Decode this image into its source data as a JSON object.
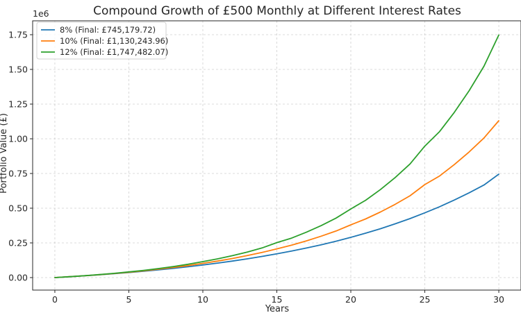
{
  "chart_data": {
    "type": "line",
    "title": "Compound Growth of £500 Monthly at Different Interest Rates",
    "xlabel": "Years",
    "ylabel": "Portfolio Value (£)",
    "y_offset_text": "1e6",
    "xlim": [
      -1.5,
      31.5
    ],
    "ylim": [
      -0.09,
      1.85
    ],
    "xticks": [
      0,
      5,
      10,
      15,
      20,
      25,
      30
    ],
    "xtick_labels": [
      "0",
      "5",
      "10",
      "15",
      "20",
      "25",
      "30"
    ],
    "yticks": [
      0,
      0.25,
      0.5,
      0.75,
      1.0,
      1.25,
      1.5,
      1.75
    ],
    "ytick_labels": [
      "0.00",
      "0.25",
      "0.50",
      "0.75",
      "1.00",
      "1.25",
      "1.50",
      "1.75"
    ],
    "grid": true,
    "legend_position": "top-left",
    "x": [
      0,
      1,
      2,
      3,
      4,
      5,
      6,
      7,
      8,
      9,
      10,
      11,
      12,
      13,
      14,
      15,
      16,
      17,
      18,
      19,
      20,
      21,
      22,
      23,
      24,
      25,
      26,
      27,
      28,
      29,
      30
    ],
    "series": [
      {
        "name": "8% (Final: £745,179.72)",
        "color": "#1f77b4",
        "values": [
          0,
          0.0062,
          0.013,
          0.0202,
          0.0281,
          0.0367,
          0.0459,
          0.0558,
          0.0666,
          0.0782,
          0.0908,
          0.1045,
          0.1192,
          0.1351,
          0.1523,
          0.1709,
          0.1911,
          0.213,
          0.2366,
          0.2622,
          0.2898,
          0.3198,
          0.3522,
          0.3873,
          0.4252,
          0.4663,
          0.5107,
          0.5588,
          0.6109,
          0.6672,
          0.7452
        ]
      },
      {
        "name": "10% (Final: £1,130,243.96)",
        "color": "#ff7f0e",
        "values": [
          0,
          0.0063,
          0.0132,
          0.0209,
          0.0293,
          0.0387,
          0.049,
          0.0603,
          0.0729,
          0.0867,
          0.1024,
          0.1191,
          0.1377,
          0.1583,
          0.1811,
          0.2072,
          0.2339,
          0.2645,
          0.2983,
          0.3356,
          0.38,
          0.4225,
          0.4727,
          0.5282,
          0.5895,
          0.67,
          0.732,
          0.8143,
          0.9053,
          1.0058,
          1.1302
        ]
      },
      {
        "name": "12% (Final: £1,747,482.07)",
        "color": "#2ca02c",
        "values": [
          0,
          0.0064,
          0.0135,
          0.0216,
          0.0306,
          0.0408,
          0.0522,
          0.0651,
          0.0796,
          0.0959,
          0.115,
          0.1349,
          0.158,
          0.1842,
          0.2136,
          0.252,
          0.2845,
          0.327,
          0.3746,
          0.4285,
          0.4946,
          0.5572,
          0.6342,
          0.721,
          0.8186,
          0.9469,
          1.0521,
          1.191,
          1.3472,
          1.5232,
          1.7475
        ]
      }
    ]
  }
}
